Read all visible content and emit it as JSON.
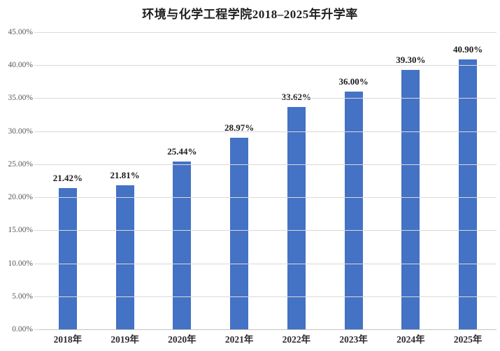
{
  "chart_data": {
    "type": "bar",
    "title": "环境与化学工程学院2018–2025年升学率",
    "categories": [
      "2018年",
      "2019年",
      "2020年",
      "2021年",
      "2022年",
      "2023年",
      "2024年",
      "2025年"
    ],
    "values": [
      21.42,
      21.81,
      25.44,
      28.97,
      33.62,
      36.0,
      39.3,
      40.9
    ],
    "value_labels": [
      "21.42%",
      "21.81%",
      "25.44%",
      "28.97%",
      "33.62%",
      "36.00%",
      "39.30%",
      "40.90%"
    ],
    "y_ticks": [
      "0.00%",
      "5.00%",
      "10.00%",
      "15.00%",
      "20.00%",
      "25.00%",
      "30.00%",
      "35.00%",
      "40.00%",
      "45.00%"
    ],
    "ylim": [
      0,
      45
    ],
    "xlabel": "",
    "ylabel": "",
    "grid": true,
    "legend": "none",
    "colors": {
      "bar": "#4472C4",
      "gridline": "#D9D9D9",
      "axis_line": "#C3C3C3",
      "y_tick_text": "#595959",
      "x_tick_text": "#2B2B2B",
      "value_label_text": "#1A1A1A",
      "title_text": "#1F1F1F",
      "background": "#FFFFFF"
    }
  }
}
